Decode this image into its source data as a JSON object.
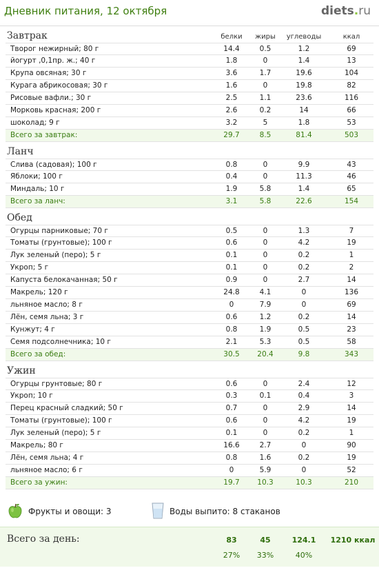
{
  "header": {
    "title": "Дневник питания, 12 октября",
    "logo_main": "diets",
    "logo_dot": ".",
    "logo_tld": "ru"
  },
  "columns": {
    "protein": "белки",
    "fat": "жиры",
    "carbs": "углеводы",
    "kcal": "ккал"
  },
  "meals": [
    {
      "title": "Завтрак",
      "rows": [
        [
          "Творог нежирный; 80 г",
          "14.4",
          "0.5",
          "1.2",
          "69"
        ],
        [
          "йогурт ,0,1пр. ж.; 40 г",
          "1.8",
          "0",
          "1.4",
          "13"
        ],
        [
          "Крупа овсяная; 30 г",
          "3.6",
          "1.7",
          "19.6",
          "104"
        ],
        [
          "Курага абрикосовая; 30 г",
          "1.6",
          "0",
          "19.8",
          "82"
        ],
        [
          "Рисовые вафли.; 30 г",
          "2.5",
          "1.1",
          "23.6",
          "116"
        ],
        [
          "Морковь красная; 200 г",
          "2.6",
          "0.2",
          "14",
          "66"
        ],
        [
          "шоколад; 9 г",
          "3.2",
          "5",
          "1.8",
          "53"
        ]
      ],
      "total": [
        "Всего за завтрак:",
        "29.7",
        "8.5",
        "81.4",
        "503"
      ]
    },
    {
      "title": "Ланч",
      "rows": [
        [
          "Слива (садовая); 100 г",
          "0.8",
          "0",
          "9.9",
          "43"
        ],
        [
          "Яблоки; 100 г",
          "0.4",
          "0",
          "11.3",
          "46"
        ],
        [
          "Миндаль; 10 г",
          "1.9",
          "5.8",
          "1.4",
          "65"
        ]
      ],
      "total": [
        "Всего за ланч:",
        "3.1",
        "5.8",
        "22.6",
        "154"
      ]
    },
    {
      "title": "Обед",
      "rows": [
        [
          "Огурцы парниковые; 70 г",
          "0.5",
          "0",
          "1.3",
          "7"
        ],
        [
          "Томаты (грунтовые); 100 г",
          "0.6",
          "0",
          "4.2",
          "19"
        ],
        [
          "Лук зеленый (перо); 5 г",
          "0.1",
          "0",
          "0.2",
          "1"
        ],
        [
          "Укроп; 5 г",
          "0.1",
          "0",
          "0.2",
          "2"
        ],
        [
          "Капуста белокачанная; 50 г",
          "0.9",
          "0",
          "2.7",
          "14"
        ],
        [
          "Макрель; 120 г",
          "24.8",
          "4.1",
          "0",
          "136"
        ],
        [
          "льняное масло; 8 г",
          "0",
          "7.9",
          "0",
          "69"
        ],
        [
          "Лён, семя льна; 3 г",
          "0.6",
          "1.2",
          "0.2",
          "14"
        ],
        [
          "Кунжут; 4 г",
          "0.8",
          "1.9",
          "0.5",
          "23"
        ],
        [
          "Семя подсолнечника; 10 г",
          "2.1",
          "5.3",
          "0.5",
          "58"
        ]
      ],
      "total": [
        "Всего за обед:",
        "30.5",
        "20.4",
        "9.8",
        "343"
      ]
    },
    {
      "title": "Ужин",
      "rows": [
        [
          "Огурцы грунтовые; 80 г",
          "0.6",
          "0",
          "2.4",
          "12"
        ],
        [
          "Укроп; 10 г",
          "0.3",
          "0.1",
          "0.4",
          "3"
        ],
        [
          "Перец красный сладкий; 50 г",
          "0.7",
          "0",
          "2.9",
          "14"
        ],
        [
          "Томаты (грунтовые); 100 г",
          "0.6",
          "0",
          "4.2",
          "19"
        ],
        [
          "Лук зеленый (перо); 5 г",
          "0.1",
          "0",
          "0.2",
          "1"
        ],
        [
          "Макрель; 80 г",
          "16.6",
          "2.7",
          "0",
          "90"
        ],
        [
          "Лён, семя льна; 4 г",
          "0.8",
          "1.6",
          "0.2",
          "19"
        ],
        [
          "льняное масло; 6 г",
          "0",
          "5.9",
          "0",
          "52"
        ]
      ],
      "total": [
        "Всего за ужин:",
        "19.7",
        "10.3",
        "10.3",
        "210"
      ]
    }
  ],
  "misc": {
    "fruits_label": "Фрукты и овощи: 3",
    "water_label": "Воды выпито: 8 стаканов",
    "apple_icon": "green-apple-icon",
    "glass_icon": "water-glass-icon"
  },
  "day_total": {
    "label": "Всего за день:",
    "protein": "83",
    "fat": "45",
    "carbs": "124.1",
    "kcal": "1210 ккал",
    "protein_pct": "27%",
    "fat_pct": "33%",
    "carbs_pct": "40%"
  },
  "colors": {
    "title_green": "#3f7f10",
    "total_green": "#3a7d12",
    "total_bg": "#f1f9ea",
    "apple_green": "#7dc242"
  }
}
